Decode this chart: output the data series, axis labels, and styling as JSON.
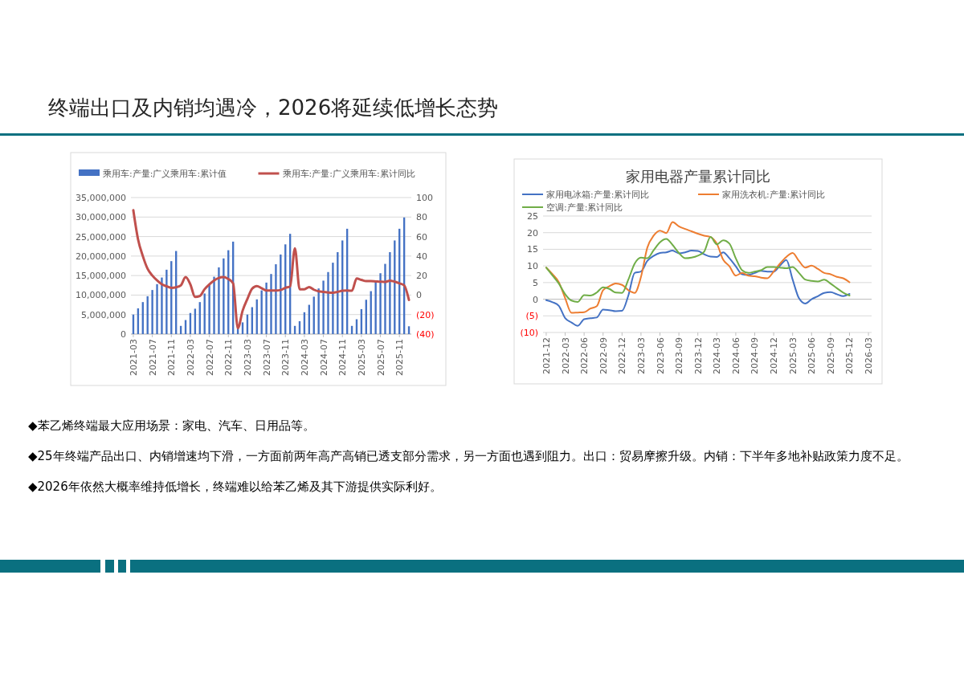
{
  "chart_data": [
    {
      "type": "bar",
      "categories": [
        "2021-03",
        null,
        null,
        null,
        "2021-07",
        null,
        null,
        null,
        "2021-11",
        null,
        null,
        null,
        "2022-03",
        null,
        null,
        null,
        "2022-07",
        null,
        null,
        null,
        "2022-11",
        null,
        null,
        null,
        "2023-03",
        null,
        null,
        null,
        "2023-07",
        null,
        null,
        null,
        "2023-11",
        null,
        null,
        null,
        "2024-03",
        null,
        null,
        null,
        "2024-07",
        null,
        null,
        null,
        "2024-11",
        null,
        null,
        null,
        "2025-03",
        null,
        null,
        null,
        "2025-07",
        null,
        null,
        null,
        "2025-11",
        null,
        null
      ],
      "series": [
        {
          "name": "乘用车:产量:广义乘用车:累计值",
          "color": "#4472c4",
          "values": [
            5000000,
            6600000,
            8200000,
            9700000,
            11300000,
            12800000,
            14500000,
            16500000,
            18700000,
            21300000,
            2100000,
            3600000,
            5400000,
            6500000,
            8200000,
            10400000,
            12700000,
            14700000,
            17100000,
            19400000,
            21500000,
            23700000,
            1600000,
            3000000,
            5000000,
            6900000,
            8900000,
            11200000,
            13200000,
            15400000,
            17900000,
            20400000,
            23000000,
            25700000,
            2100000,
            3300000,
            5600000,
            7500000,
            9600000,
            11700000,
            13700000,
            15900000,
            18300000,
            21000000,
            24000000,
            27000000,
            2100000,
            3800000,
            6400000,
            8800000,
            11000000,
            13400000,
            15600000,
            18000000,
            21000000,
            24000000,
            27000000,
            29900000,
            2000000
          ]
        },
        {
          "name": "乘用车:产量:广义乘用车:累计同比",
          "type": "line",
          "axis": "y2",
          "color": "#c0504d",
          "values": [
            87,
            57,
            40,
            27,
            20,
            15,
            11,
            9,
            7.4,
            8,
            10,
            18.4,
            11,
            -2,
            -1,
            6,
            11,
            15,
            17.6,
            18.4,
            16.5,
            12,
            -34,
            -16,
            -4,
            6.6,
            9.3,
            7,
            4.7,
            4.7,
            4.7,
            5.2,
            7.4,
            8.8,
            48,
            6,
            6,
            8.2,
            5.5,
            3.8,
            3.3,
            2.7,
            2.5,
            3.3,
            4.4,
            4.7,
            4.4,
            17,
            15.6,
            14.3,
            14.3,
            14,
            13.7,
            13.5,
            14.8,
            13.7,
            12,
            10,
            -5
          ]
        }
      ],
      "ylim": [
        0,
        35000000
      ],
      "yticks": [
        {
          "value": 0,
          "label": "0"
        },
        {
          "value": 5000000,
          "label": "5,000,000"
        },
        {
          "value": 10000000,
          "label": "10,000,000"
        },
        {
          "value": 15000000,
          "label": "15,000,000"
        },
        {
          "value": 20000000,
          "label": "20,000,000"
        },
        {
          "value": 25000000,
          "label": "25,000,000"
        },
        {
          "value": 30000000,
          "label": "30,000,000"
        },
        {
          "value": 35000000,
          "label": "35,000,000"
        }
      ],
      "y2lim": [
        -40,
        100
      ],
      "y2ticks": [
        {
          "value": -40,
          "label": "(40)"
        },
        {
          "value": -20,
          "label": "(20)"
        },
        0,
        20,
        40,
        60,
        80,
        100
      ],
      "grid": "y",
      "legend": "top"
    },
    {
      "type": "line",
      "title": "家用电器产量累计同比",
      "categories": [
        "2021-12",
        null,
        null,
        "2022-03",
        null,
        null,
        "2022-06",
        null,
        null,
        "2022-09",
        null,
        null,
        "2022-12",
        null,
        null,
        "2023-03",
        null,
        null,
        "2023-06",
        null,
        null,
        "2023-09",
        null,
        null,
        "2023-12",
        null,
        null,
        "2024-03",
        null,
        null,
        "2024-06",
        null,
        null,
        "2024-09",
        null,
        null,
        "2024-12",
        null,
        null,
        "2025-03",
        null,
        null,
        "2025-06",
        null,
        null,
        "2025-09",
        null,
        null,
        "2025-12",
        null,
        null,
        "2026-03"
      ],
      "series": [
        {
          "name": "家用电冰箱:产量:累计同比",
          "color": "#4472c4",
          "values": [
            -0.3,
            -0.9,
            -2,
            -5.7,
            -7,
            -8,
            -6,
            -5.7,
            -5.5,
            -3.1,
            -3.3,
            -3.6,
            -3.5,
            1.1,
            7.9,
            8.3,
            11.5,
            13,
            13.9,
            14.1,
            14.6,
            13.8,
            14.1,
            14.6,
            14.5,
            13.5,
            12.8,
            12.7,
            14.1,
            12.3,
            9.9,
            7.5,
            7.3,
            7.9,
            8.5,
            8.3,
            8.3,
            10.1,
            11.8,
            5.9,
            0.3,
            -1.3,
            0,
            0.9,
            1.9,
            2.1,
            1.5,
            0.9,
            1.6,
            null,
            null,
            null
          ]
        },
        {
          "name": "家用洗衣机:产量:累计同比",
          "color": "#ed7d31",
          "values": [
            9.5,
            7.5,
            5.1,
            0.3,
            -4.1,
            -4,
            -3.9,
            -2.8,
            -2.1,
            2.7,
            3.9,
            4.7,
            4.3,
            2.7,
            1.9,
            6.7,
            15.5,
            19.1,
            20.6,
            19.9,
            23.2,
            21.9,
            21.1,
            20.4,
            19.7,
            19.1,
            18.7,
            16.7,
            11.9,
            9.9,
            7.1,
            7.9,
            7.1,
            6.9,
            6.5,
            6.3,
            8.3,
            10.7,
            12.7,
            13.9,
            11.5,
            9.5,
            10.1,
            9.1,
            7.9,
            7.5,
            6.7,
            6.3,
            5.1,
            null,
            null,
            null
          ]
        },
        {
          "name": "空调:产量:累计同比",
          "color": "#70ad47",
          "values": [
            9.5,
            7.1,
            4.7,
            1.5,
            -0.4,
            -0.8,
            1.2,
            1.1,
            2,
            3.6,
            3.1,
            2,
            1.9,
            5.9,
            10.7,
            12.5,
            12.3,
            14.7,
            17.1,
            18.1,
            16.3,
            13.9,
            12.3,
            12.5,
            13.1,
            14.3,
            18.7,
            16.5,
            17.7,
            16.7,
            12.3,
            8.7,
            7.9,
            8.3,
            8.7,
            9.7,
            9.7,
            9.5,
            9.3,
            9.7,
            7.9,
            5.9,
            5.5,
            5.3,
            5.9,
            4.7,
            3.3,
            2,
            1.1,
            null,
            null,
            null
          ]
        }
      ],
      "ylim": [
        -10,
        25
      ],
      "yticks": [
        {
          "value": -10,
          "label": "(10)"
        },
        {
          "value": -5,
          "label": "(5)"
        },
        0,
        5,
        10,
        15,
        20,
        25
      ],
      "grid": "y",
      "legend": "top"
    },
    {
      "type": "other",
      "title": "终端出口及内销均遇冷，2026将延续低增长态势",
      "annotations": [
        "◆苯乙烯终端最大应用场景：家电、汽车、日用品等。",
        "◆25年终端产品出口、内销增速均下滑，一方面前两年高产高销已透支部分需求，另一方面也遇到阻力。出口：贸易摩擦升级。内销：下半年多地补贴政策力度不足。",
        "◆2026年依然大概率维持低增长，终端难以给苯乙烯及其下游提供实际利好。"
      ]
    }
  ]
}
